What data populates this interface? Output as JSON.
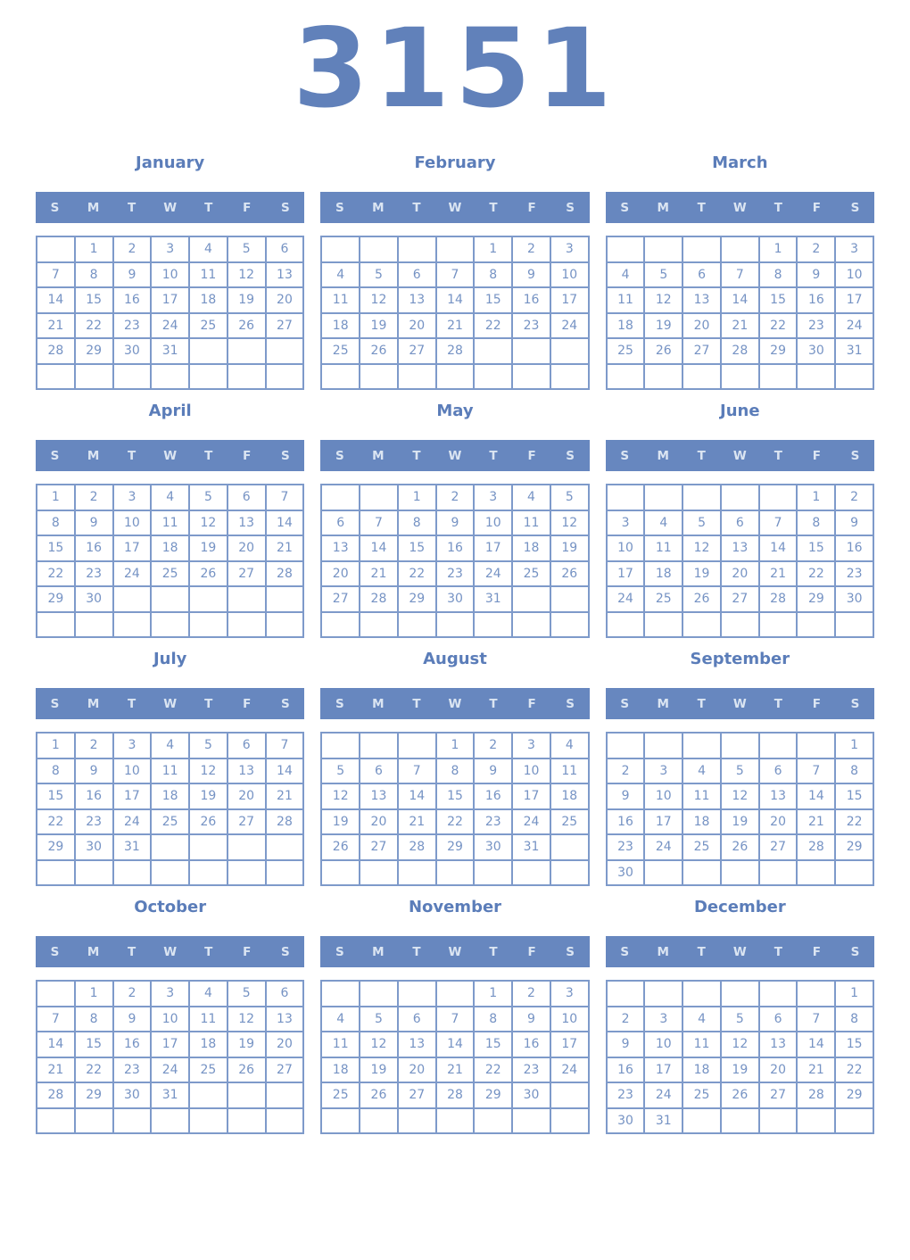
{
  "year_title": "3151",
  "weekdays": [
    "S",
    "M",
    "T",
    "W",
    "T",
    "F",
    "S"
  ],
  "colors": {
    "year_title": "#6181ba",
    "month_name": "#5b7db9",
    "weekday_bar_bg": "#6787bf",
    "weekday_text": "#dbe5f2",
    "grid_border": "#7e9aca",
    "day_text": "#7693c4",
    "page_bg": "#ffffff"
  },
  "months": [
    {
      "name": "January",
      "weeks": [
        [
          "",
          "1",
          "2",
          "3",
          "4",
          "5",
          "6"
        ],
        [
          "7",
          "8",
          "9",
          "10",
          "11",
          "12",
          "13"
        ],
        [
          "14",
          "15",
          "16",
          "17",
          "18",
          "19",
          "20"
        ],
        [
          "21",
          "22",
          "23",
          "24",
          "25",
          "26",
          "27"
        ],
        [
          "28",
          "29",
          "30",
          "31",
          "",
          "",
          ""
        ],
        [
          "",
          "",
          "",
          "",
          "",
          "",
          ""
        ]
      ]
    },
    {
      "name": "February",
      "weeks": [
        [
          "",
          "",
          "",
          "",
          "1",
          "2",
          "3"
        ],
        [
          "4",
          "5",
          "6",
          "7",
          "8",
          "9",
          "10"
        ],
        [
          "11",
          "12",
          "13",
          "14",
          "15",
          "16",
          "17"
        ],
        [
          "18",
          "19",
          "20",
          "21",
          "22",
          "23",
          "24"
        ],
        [
          "25",
          "26",
          "27",
          "28",
          "",
          "",
          ""
        ],
        [
          "",
          "",
          "",
          "",
          "",
          "",
          ""
        ]
      ]
    },
    {
      "name": "March",
      "weeks": [
        [
          "",
          "",
          "",
          "",
          "1",
          "2",
          "3"
        ],
        [
          "4",
          "5",
          "6",
          "7",
          "8",
          "9",
          "10"
        ],
        [
          "11",
          "12",
          "13",
          "14",
          "15",
          "16",
          "17"
        ],
        [
          "18",
          "19",
          "20",
          "21",
          "22",
          "23",
          "24"
        ],
        [
          "25",
          "26",
          "27",
          "28",
          "29",
          "30",
          "31"
        ],
        [
          "",
          "",
          "",
          "",
          "",
          "",
          ""
        ]
      ]
    },
    {
      "name": "April",
      "weeks": [
        [
          "1",
          "2",
          "3",
          "4",
          "5",
          "6",
          "7"
        ],
        [
          "8",
          "9",
          "10",
          "11",
          "12",
          "13",
          "14"
        ],
        [
          "15",
          "16",
          "17",
          "18",
          "19",
          "20",
          "21"
        ],
        [
          "22",
          "23",
          "24",
          "25",
          "26",
          "27",
          "28"
        ],
        [
          "29",
          "30",
          "",
          "",
          "",
          "",
          ""
        ],
        [
          "",
          "",
          "",
          "",
          "",
          "",
          ""
        ]
      ]
    },
    {
      "name": "May",
      "weeks": [
        [
          "",
          "",
          "1",
          "2",
          "3",
          "4",
          "5"
        ],
        [
          "6",
          "7",
          "8",
          "9",
          "10",
          "11",
          "12"
        ],
        [
          "13",
          "14",
          "15",
          "16",
          "17",
          "18",
          "19"
        ],
        [
          "20",
          "21",
          "22",
          "23",
          "24",
          "25",
          "26"
        ],
        [
          "27",
          "28",
          "29",
          "30",
          "31",
          "",
          ""
        ],
        [
          "",
          "",
          "",
          "",
          "",
          "",
          ""
        ]
      ]
    },
    {
      "name": "June",
      "weeks": [
        [
          "",
          "",
          "",
          "",
          "",
          "1",
          "2"
        ],
        [
          "3",
          "4",
          "5",
          "6",
          "7",
          "8",
          "9"
        ],
        [
          "10",
          "11",
          "12",
          "13",
          "14",
          "15",
          "16"
        ],
        [
          "17",
          "18",
          "19",
          "20",
          "21",
          "22",
          "23"
        ],
        [
          "24",
          "25",
          "26",
          "27",
          "28",
          "29",
          "30"
        ],
        [
          "",
          "",
          "",
          "",
          "",
          "",
          ""
        ]
      ]
    },
    {
      "name": "July",
      "weeks": [
        [
          "1",
          "2",
          "3",
          "4",
          "5",
          "6",
          "7"
        ],
        [
          "8",
          "9",
          "10",
          "11",
          "12",
          "13",
          "14"
        ],
        [
          "15",
          "16",
          "17",
          "18",
          "19",
          "20",
          "21"
        ],
        [
          "22",
          "23",
          "24",
          "25",
          "26",
          "27",
          "28"
        ],
        [
          "29",
          "30",
          "31",
          "",
          "",
          "",
          ""
        ],
        [
          "",
          "",
          "",
          "",
          "",
          "",
          ""
        ]
      ]
    },
    {
      "name": "August",
      "weeks": [
        [
          "",
          "",
          "",
          "1",
          "2",
          "3",
          "4"
        ],
        [
          "5",
          "6",
          "7",
          "8",
          "9",
          "10",
          "11"
        ],
        [
          "12",
          "13",
          "14",
          "15",
          "16",
          "17",
          "18"
        ],
        [
          "19",
          "20",
          "21",
          "22",
          "23",
          "24",
          "25"
        ],
        [
          "26",
          "27",
          "28",
          "29",
          "30",
          "31",
          ""
        ],
        [
          "",
          "",
          "",
          "",
          "",
          "",
          ""
        ]
      ]
    },
    {
      "name": "September",
      "weeks": [
        [
          "",
          "",
          "",
          "",
          "",
          "",
          "1"
        ],
        [
          "2",
          "3",
          "4",
          "5",
          "6",
          "7",
          "8"
        ],
        [
          "9",
          "10",
          "11",
          "12",
          "13",
          "14",
          "15"
        ],
        [
          "16",
          "17",
          "18",
          "19",
          "20",
          "21",
          "22"
        ],
        [
          "23",
          "24",
          "25",
          "26",
          "27",
          "28",
          "29"
        ],
        [
          "30",
          "",
          "",
          "",
          "",
          "",
          ""
        ]
      ]
    },
    {
      "name": "October",
      "weeks": [
        [
          "",
          "1",
          "2",
          "3",
          "4",
          "5",
          "6"
        ],
        [
          "7",
          "8",
          "9",
          "10",
          "11",
          "12",
          "13"
        ],
        [
          "14",
          "15",
          "16",
          "17",
          "18",
          "19",
          "20"
        ],
        [
          "21",
          "22",
          "23",
          "24",
          "25",
          "26",
          "27"
        ],
        [
          "28",
          "29",
          "30",
          "31",
          "",
          "",
          ""
        ],
        [
          "",
          "",
          "",
          "",
          "",
          "",
          ""
        ]
      ]
    },
    {
      "name": "November",
      "weeks": [
        [
          "",
          "",
          "",
          "",
          "1",
          "2",
          "3"
        ],
        [
          "4",
          "5",
          "6",
          "7",
          "8",
          "9",
          "10"
        ],
        [
          "11",
          "12",
          "13",
          "14",
          "15",
          "16",
          "17"
        ],
        [
          "18",
          "19",
          "20",
          "21",
          "22",
          "23",
          "24"
        ],
        [
          "25",
          "26",
          "27",
          "28",
          "29",
          "30",
          ""
        ],
        [
          "",
          "",
          "",
          "",
          "",
          "",
          ""
        ]
      ]
    },
    {
      "name": "December",
      "weeks": [
        [
          "",
          "",
          "",
          "",
          "",
          "",
          "1"
        ],
        [
          "2",
          "3",
          "4",
          "5",
          "6",
          "7",
          "8"
        ],
        [
          "9",
          "10",
          "11",
          "12",
          "13",
          "14",
          "15"
        ],
        [
          "16",
          "17",
          "18",
          "19",
          "20",
          "21",
          "22"
        ],
        [
          "23",
          "24",
          "25",
          "26",
          "27",
          "28",
          "29"
        ],
        [
          "30",
          "31",
          "",
          "",
          "",
          "",
          ""
        ]
      ]
    }
  ]
}
